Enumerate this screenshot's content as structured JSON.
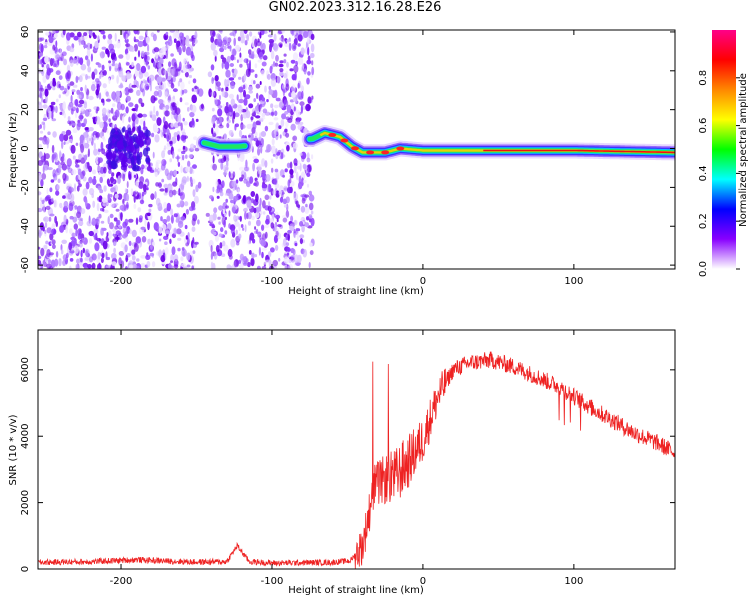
{
  "title": "GN02.2023.312.16.28.E26",
  "colors": {
    "snr_line": "#ee2222",
    "axis": "#000000"
  },
  "chart_data": [
    {
      "type": "heatmap",
      "xlabel": "Height of straight line (km)",
      "ylabel": "Frequency (Hz)",
      "xlim": [
        -255,
        167
      ],
      "ylim": [
        -62,
        61
      ],
      "xticks": [
        -200,
        -100,
        0,
        100
      ],
      "yticks": [
        -60,
        -40,
        -20,
        0,
        20,
        40,
        60
      ],
      "colorbar": {
        "label": "Normalized spectral amplitude",
        "range": [
          0.0,
          1.0
        ],
        "ticks": [
          0.0,
          0.2,
          0.4,
          0.6,
          0.8
        ],
        "colormap": [
          "#ffffff",
          "#8800ff",
          "#0000ff",
          "#00ffff",
          "#00ff00",
          "#ffff00",
          "#ff8800",
          "#ff0000",
          "#ff0088"
        ]
      },
      "noise_region": {
        "x_from": -255,
        "x_to": -73,
        "gap": [
          -150,
          -140
        ]
      },
      "ridge": [
        {
          "x": -145,
          "y": 3
        },
        {
          "x": -135,
          "y": 1
        },
        {
          "x": -122,
          "y": 1
        },
        {
          "x": -73,
          "y": 5
        },
        {
          "x": -65,
          "y": 8
        },
        {
          "x": -55,
          "y": 6
        },
        {
          "x": -47,
          "y": 1
        },
        {
          "x": -40,
          "y": -2
        },
        {
          "x": -25,
          "y": -2
        },
        {
          "x": -15,
          "y": 0
        },
        {
          "x": 0,
          "y": -1
        },
        {
          "x": 40,
          "y": -1
        },
        {
          "x": 100,
          "y": -1
        },
        {
          "x": 167,
          "y": -2
        }
      ]
    },
    {
      "type": "line",
      "xlabel": "Height of straight line (km)",
      "ylabel": "SNR (10 * v/v)",
      "xlim": [
        -255,
        167
      ],
      "ylim": [
        0,
        7200
      ],
      "xticks": [
        -200,
        -100,
        0,
        100
      ],
      "yticks": [
        0,
        2000,
        4000,
        6000
      ],
      "series": [
        {
          "x": [
            -255,
            -220,
            -190,
            -170,
            -150,
            -130,
            -123,
            -115,
            -100,
            -80,
            -60,
            -48,
            -40,
            -32,
            -25,
            -18,
            -10,
            0,
            10,
            20,
            30,
            45,
            60,
            75,
            90,
            100,
            110,
            125,
            140,
            155,
            167
          ],
          "y": [
            200,
            220,
            280,
            240,
            210,
            220,
            700,
            220,
            180,
            190,
            200,
            250,
            700,
            2500,
            2700,
            2800,
            3200,
            3900,
            5200,
            6000,
            6200,
            6300,
            6100,
            5800,
            5500,
            5200,
            4900,
            4500,
            4100,
            3800,
            3500
          ]
        }
      ]
    }
  ]
}
